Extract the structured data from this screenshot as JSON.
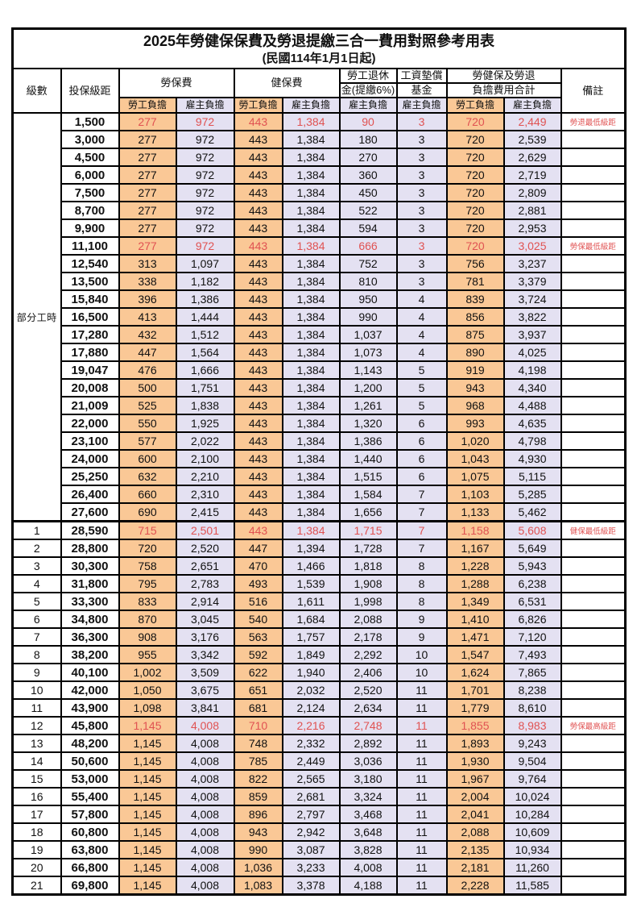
{
  "title": "2025年勞健保保費及勞退提繳三合一費用對照參考用表",
  "subtitle": "(民國114年1月1日起)",
  "colors": {
    "employee_bg": "#FAC896",
    "employer_bg": "#E4E1F2",
    "highlight_text": "#E05252",
    "grid": "#000000"
  },
  "header": {
    "level": "級數",
    "bracket": "投保級距",
    "labor_ins": "勞保費",
    "health_ins": "健保費",
    "pension_top": "勞工退休",
    "pension_bottom": "金(提繳6%)",
    "fund_top": "工資墊償",
    "fund_bottom": "基金",
    "total_top": "勞健保及勞退",
    "total_bottom": "負擔費用合計",
    "remark": "備註",
    "employee": "勞工負擔",
    "employer": "雇主負擔"
  },
  "part_time_label": "部分工時",
  "rows": [
    {
      "level": "",
      "bracket": "1,500",
      "li_emp": "277",
      "li_er": "972",
      "hi_emp": "443",
      "hi_er": "1,384",
      "pension": "90",
      "fund": "3",
      "tot_emp": "720",
      "tot_er": "2,449",
      "remark": "勞退最低級距",
      "red": true,
      "section_start": false
    },
    {
      "level": "",
      "bracket": "3,000",
      "li_emp": "277",
      "li_er": "972",
      "hi_emp": "443",
      "hi_er": "1,384",
      "pension": "180",
      "fund": "3",
      "tot_emp": "720",
      "tot_er": "2,539",
      "remark": "",
      "red": false,
      "section_start": false
    },
    {
      "level": "",
      "bracket": "4,500",
      "li_emp": "277",
      "li_er": "972",
      "hi_emp": "443",
      "hi_er": "1,384",
      "pension": "270",
      "fund": "3",
      "tot_emp": "720",
      "tot_er": "2,629",
      "remark": "",
      "red": false,
      "section_start": false
    },
    {
      "level": "",
      "bracket": "6,000",
      "li_emp": "277",
      "li_er": "972",
      "hi_emp": "443",
      "hi_er": "1,384",
      "pension": "360",
      "fund": "3",
      "tot_emp": "720",
      "tot_er": "2,719",
      "remark": "",
      "red": false,
      "section_start": false
    },
    {
      "level": "",
      "bracket": "7,500",
      "li_emp": "277",
      "li_er": "972",
      "hi_emp": "443",
      "hi_er": "1,384",
      "pension": "450",
      "fund": "3",
      "tot_emp": "720",
      "tot_er": "2,809",
      "remark": "",
      "red": false,
      "section_start": false
    },
    {
      "level": "",
      "bracket": "8,700",
      "li_emp": "277",
      "li_er": "972",
      "hi_emp": "443",
      "hi_er": "1,384",
      "pension": "522",
      "fund": "3",
      "tot_emp": "720",
      "tot_er": "2,881",
      "remark": "",
      "red": false,
      "section_start": false
    },
    {
      "level": "",
      "bracket": "9,900",
      "li_emp": "277",
      "li_er": "972",
      "hi_emp": "443",
      "hi_er": "1,384",
      "pension": "594",
      "fund": "3",
      "tot_emp": "720",
      "tot_er": "2,953",
      "remark": "",
      "red": false,
      "section_start": false
    },
    {
      "level": "",
      "bracket": "11,100",
      "li_emp": "277",
      "li_er": "972",
      "hi_emp": "443",
      "hi_er": "1,384",
      "pension": "666",
      "fund": "3",
      "tot_emp": "720",
      "tot_er": "3,025",
      "remark": "勞保最低級距",
      "red": true,
      "section_start": false
    },
    {
      "level": "",
      "bracket": "12,540",
      "li_emp": "313",
      "li_er": "1,097",
      "hi_emp": "443",
      "hi_er": "1,384",
      "pension": "752",
      "fund": "3",
      "tot_emp": "756",
      "tot_er": "3,237",
      "remark": "",
      "red": false,
      "section_start": false
    },
    {
      "level": "",
      "bracket": "13,500",
      "li_emp": "338",
      "li_er": "1,182",
      "hi_emp": "443",
      "hi_er": "1,384",
      "pension": "810",
      "fund": "3",
      "tot_emp": "781",
      "tot_er": "3,379",
      "remark": "",
      "red": false,
      "section_start": false
    },
    {
      "level": "",
      "bracket": "15,840",
      "li_emp": "396",
      "li_er": "1,386",
      "hi_emp": "443",
      "hi_er": "1,384",
      "pension": "950",
      "fund": "4",
      "tot_emp": "839",
      "tot_er": "3,724",
      "remark": "",
      "red": false,
      "section_start": false
    },
    {
      "level": "",
      "bracket": "16,500",
      "li_emp": "413",
      "li_er": "1,444",
      "hi_emp": "443",
      "hi_er": "1,384",
      "pension": "990",
      "fund": "4",
      "tot_emp": "856",
      "tot_er": "3,822",
      "remark": "",
      "red": false,
      "section_start": false
    },
    {
      "level": "",
      "bracket": "17,280",
      "li_emp": "432",
      "li_er": "1,512",
      "hi_emp": "443",
      "hi_er": "1,384",
      "pension": "1,037",
      "fund": "4",
      "tot_emp": "875",
      "tot_er": "3,937",
      "remark": "",
      "red": false,
      "section_start": false
    },
    {
      "level": "",
      "bracket": "17,880",
      "li_emp": "447",
      "li_er": "1,564",
      "hi_emp": "443",
      "hi_er": "1,384",
      "pension": "1,073",
      "fund": "4",
      "tot_emp": "890",
      "tot_er": "4,025",
      "remark": "",
      "red": false,
      "section_start": false
    },
    {
      "level": "",
      "bracket": "19,047",
      "li_emp": "476",
      "li_er": "1,666",
      "hi_emp": "443",
      "hi_er": "1,384",
      "pension": "1,143",
      "fund": "5",
      "tot_emp": "919",
      "tot_er": "4,198",
      "remark": "",
      "red": false,
      "section_start": false
    },
    {
      "level": "",
      "bracket": "20,008",
      "li_emp": "500",
      "li_er": "1,751",
      "hi_emp": "443",
      "hi_er": "1,384",
      "pension": "1,200",
      "fund": "5",
      "tot_emp": "943",
      "tot_er": "4,340",
      "remark": "",
      "red": false,
      "section_start": false
    },
    {
      "level": "",
      "bracket": "21,009",
      "li_emp": "525",
      "li_er": "1,838",
      "hi_emp": "443",
      "hi_er": "1,384",
      "pension": "1,261",
      "fund": "5",
      "tot_emp": "968",
      "tot_er": "4,488",
      "remark": "",
      "red": false,
      "section_start": false
    },
    {
      "level": "",
      "bracket": "22,000",
      "li_emp": "550",
      "li_er": "1,925",
      "hi_emp": "443",
      "hi_er": "1,384",
      "pension": "1,320",
      "fund": "6",
      "tot_emp": "993",
      "tot_er": "4,635",
      "remark": "",
      "red": false,
      "section_start": false
    },
    {
      "level": "",
      "bracket": "23,100",
      "li_emp": "577",
      "li_er": "2,022",
      "hi_emp": "443",
      "hi_er": "1,384",
      "pension": "1,386",
      "fund": "6",
      "tot_emp": "1,020",
      "tot_er": "4,798",
      "remark": "",
      "red": false,
      "section_start": false
    },
    {
      "level": "",
      "bracket": "24,000",
      "li_emp": "600",
      "li_er": "2,100",
      "hi_emp": "443",
      "hi_er": "1,384",
      "pension": "1,440",
      "fund": "6",
      "tot_emp": "1,043",
      "tot_er": "4,930",
      "remark": "",
      "red": false,
      "section_start": false
    },
    {
      "level": "",
      "bracket": "25,250",
      "li_emp": "632",
      "li_er": "2,210",
      "hi_emp": "443",
      "hi_er": "1,384",
      "pension": "1,515",
      "fund": "6",
      "tot_emp": "1,075",
      "tot_er": "5,115",
      "remark": "",
      "red": false,
      "section_start": false
    },
    {
      "level": "",
      "bracket": "26,400",
      "li_emp": "660",
      "li_er": "2,310",
      "hi_emp": "443",
      "hi_er": "1,384",
      "pension": "1,584",
      "fund": "7",
      "tot_emp": "1,103",
      "tot_er": "5,285",
      "remark": "",
      "red": false,
      "section_start": false
    },
    {
      "level": "",
      "bracket": "27,600",
      "li_emp": "690",
      "li_er": "2,415",
      "hi_emp": "443",
      "hi_er": "1,384",
      "pension": "1,656",
      "fund": "7",
      "tot_emp": "1,133",
      "tot_er": "5,462",
      "remark": "",
      "red": false,
      "section_start": false
    },
    {
      "level": "1",
      "bracket": "28,590",
      "li_emp": "715",
      "li_er": "2,501",
      "hi_emp": "443",
      "hi_er": "1,384",
      "pension": "1,715",
      "fund": "7",
      "tot_emp": "1,158",
      "tot_er": "5,608",
      "remark": "健保最低級距",
      "red": true,
      "section_start": true
    },
    {
      "level": "2",
      "bracket": "28,800",
      "li_emp": "720",
      "li_er": "2,520",
      "hi_emp": "447",
      "hi_er": "1,394",
      "pension": "1,728",
      "fund": "7",
      "tot_emp": "1,167",
      "tot_er": "5,649",
      "remark": "",
      "red": false,
      "section_start": false
    },
    {
      "level": "3",
      "bracket": "30,300",
      "li_emp": "758",
      "li_er": "2,651",
      "hi_emp": "470",
      "hi_er": "1,466",
      "pension": "1,818",
      "fund": "8",
      "tot_emp": "1,228",
      "tot_er": "5,943",
      "remark": "",
      "red": false,
      "section_start": false
    },
    {
      "level": "4",
      "bracket": "31,800",
      "li_emp": "795",
      "li_er": "2,783",
      "hi_emp": "493",
      "hi_er": "1,539",
      "pension": "1,908",
      "fund": "8",
      "tot_emp": "1,288",
      "tot_er": "6,238",
      "remark": "",
      "red": false,
      "section_start": false
    },
    {
      "level": "5",
      "bracket": "33,300",
      "li_emp": "833",
      "li_er": "2,914",
      "hi_emp": "516",
      "hi_er": "1,611",
      "pension": "1,998",
      "fund": "8",
      "tot_emp": "1,349",
      "tot_er": "6,531",
      "remark": "",
      "red": false,
      "section_start": false
    },
    {
      "level": "6",
      "bracket": "34,800",
      "li_emp": "870",
      "li_er": "3,045",
      "hi_emp": "540",
      "hi_er": "1,684",
      "pension": "2,088",
      "fund": "9",
      "tot_emp": "1,410",
      "tot_er": "6,826",
      "remark": "",
      "red": false,
      "section_start": false
    },
    {
      "level": "7",
      "bracket": "36,300",
      "li_emp": "908",
      "li_er": "3,176",
      "hi_emp": "563",
      "hi_er": "1,757",
      "pension": "2,178",
      "fund": "9",
      "tot_emp": "1,471",
      "tot_er": "7,120",
      "remark": "",
      "red": false,
      "section_start": false
    },
    {
      "level": "8",
      "bracket": "38,200",
      "li_emp": "955",
      "li_er": "3,342",
      "hi_emp": "592",
      "hi_er": "1,849",
      "pension": "2,292",
      "fund": "10",
      "tot_emp": "1,547",
      "tot_er": "7,493",
      "remark": "",
      "red": false,
      "section_start": false
    },
    {
      "level": "9",
      "bracket": "40,100",
      "li_emp": "1,002",
      "li_er": "3,509",
      "hi_emp": "622",
      "hi_er": "1,940",
      "pension": "2,406",
      "fund": "10",
      "tot_emp": "1,624",
      "tot_er": "7,865",
      "remark": "",
      "red": false,
      "section_start": false
    },
    {
      "level": "10",
      "bracket": "42,000",
      "li_emp": "1,050",
      "li_er": "3,675",
      "hi_emp": "651",
      "hi_er": "2,032",
      "pension": "2,520",
      "fund": "11",
      "tot_emp": "1,701",
      "tot_er": "8,238",
      "remark": "",
      "red": false,
      "section_start": false
    },
    {
      "level": "11",
      "bracket": "43,900",
      "li_emp": "1,098",
      "li_er": "3,841",
      "hi_emp": "681",
      "hi_er": "2,124",
      "pension": "2,634",
      "fund": "11",
      "tot_emp": "1,779",
      "tot_er": "8,610",
      "remark": "",
      "red": false,
      "section_start": false
    },
    {
      "level": "12",
      "bracket": "45,800",
      "li_emp": "1,145",
      "li_er": "4,008",
      "hi_emp": "710",
      "hi_er": "2,216",
      "pension": "2,748",
      "fund": "11",
      "tot_emp": "1,855",
      "tot_er": "8,983",
      "remark": "勞保最高級距",
      "red": true,
      "section_start": false
    },
    {
      "level": "13",
      "bracket": "48,200",
      "li_emp": "1,145",
      "li_er": "4,008",
      "hi_emp": "748",
      "hi_er": "2,332",
      "pension": "2,892",
      "fund": "11",
      "tot_emp": "1,893",
      "tot_er": "9,243",
      "remark": "",
      "red": false,
      "section_start": false
    },
    {
      "level": "14",
      "bracket": "50,600",
      "li_emp": "1,145",
      "li_er": "4,008",
      "hi_emp": "785",
      "hi_er": "2,449",
      "pension": "3,036",
      "fund": "11",
      "tot_emp": "1,930",
      "tot_er": "9,504",
      "remark": "",
      "red": false,
      "section_start": false
    },
    {
      "level": "15",
      "bracket": "53,000",
      "li_emp": "1,145",
      "li_er": "4,008",
      "hi_emp": "822",
      "hi_er": "2,565",
      "pension": "3,180",
      "fund": "11",
      "tot_emp": "1,967",
      "tot_er": "9,764",
      "remark": "",
      "red": false,
      "section_start": false
    },
    {
      "level": "16",
      "bracket": "55,400",
      "li_emp": "1,145",
      "li_er": "4,008",
      "hi_emp": "859",
      "hi_er": "2,681",
      "pension": "3,324",
      "fund": "11",
      "tot_emp": "2,004",
      "tot_er": "10,024",
      "remark": "",
      "red": false,
      "section_start": false
    },
    {
      "level": "17",
      "bracket": "57,800",
      "li_emp": "1,145",
      "li_er": "4,008",
      "hi_emp": "896",
      "hi_er": "2,797",
      "pension": "3,468",
      "fund": "11",
      "tot_emp": "2,041",
      "tot_er": "10,284",
      "remark": "",
      "red": false,
      "section_start": false
    },
    {
      "level": "18",
      "bracket": "60,800",
      "li_emp": "1,145",
      "li_er": "4,008",
      "hi_emp": "943",
      "hi_er": "2,942",
      "pension": "3,648",
      "fund": "11",
      "tot_emp": "2,088",
      "tot_er": "10,609",
      "remark": "",
      "red": false,
      "section_start": false
    },
    {
      "level": "19",
      "bracket": "63,800",
      "li_emp": "1,145",
      "li_er": "4,008",
      "hi_emp": "990",
      "hi_er": "3,087",
      "pension": "3,828",
      "fund": "11",
      "tot_emp": "2,135",
      "tot_er": "10,934",
      "remark": "",
      "red": false,
      "section_start": false
    },
    {
      "level": "20",
      "bracket": "66,800",
      "li_emp": "1,145",
      "li_er": "4,008",
      "hi_emp": "1,036",
      "hi_er": "3,233",
      "pension": "4,008",
      "fund": "11",
      "tot_emp": "2,181",
      "tot_er": "11,260",
      "remark": "",
      "red": false,
      "section_start": false
    },
    {
      "level": "21",
      "bracket": "69,800",
      "li_emp": "1,145",
      "li_er": "4,008",
      "hi_emp": "1,083",
      "hi_er": "3,378",
      "pension": "4,188",
      "fund": "11",
      "tot_emp": "2,228",
      "tot_er": "11,585",
      "remark": "",
      "red": false,
      "section_start": false
    }
  ]
}
